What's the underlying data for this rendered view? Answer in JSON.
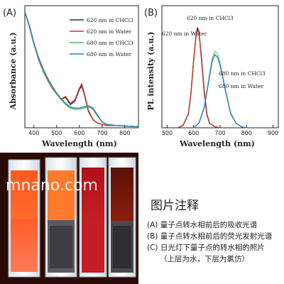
{
  "panel_labels": {
    "a": "(A)",
    "b": "(B)",
    "c": "C)"
  },
  "watermark": "mnano.com",
  "caption": {
    "title": "图片注释",
    "lines": [
      "(A) 量子点转水相前后的吸收光谱",
      "(B) 量子点转水相前后的荧光发射光谱",
      "(C) 日光灯下量子点的转水相的照片",
      "（上层为水，下层为氯仿）"
    ]
  },
  "chart_data": [
    {
      "type": "line",
      "panel": "(A)",
      "xlabel": "Wavelength (nm)",
      "ylabel": "Absorbance (a.u.)",
      "xlim": [
        360,
        860
      ],
      "xticks": [
        400,
        500,
        600,
        700,
        800
      ],
      "y_tick_labels": false,
      "legend": {
        "placement": "top-right",
        "entries": [
          {
            "name": "620 nm in CHCl3",
            "color": "#333333"
          },
          {
            "name": "620 nm in Water",
            "color": "#c0392b"
          },
          {
            "name": "680 nm in CHCl3",
            "color": "#5cb85c"
          },
          {
            "name": "680 nm in Water",
            "color": "#2e7fb8"
          }
        ]
      },
      "series": [
        {
          "name": "620 nm in CHCl3",
          "color": "#333333",
          "x": [
            360,
            380,
            400,
            420,
            440,
            460,
            480,
            500,
            520,
            540,
            560,
            580,
            600,
            610,
            620,
            640,
            660,
            680,
            700,
            720,
            760,
            800,
            860
          ],
          "y": [
            1.0,
            0.88,
            0.73,
            0.6,
            0.5,
            0.42,
            0.35,
            0.29,
            0.25,
            0.26,
            0.2,
            0.23,
            0.33,
            0.36,
            0.3,
            0.14,
            0.07,
            0.04,
            0.03,
            0.02,
            0.02,
            0.015,
            0.01
          ]
        },
        {
          "name": "620 nm in Water",
          "color": "#c0392b",
          "x": [
            360,
            380,
            400,
            420,
            440,
            460,
            480,
            500,
            520,
            540,
            560,
            580,
            600,
            610,
            620,
            640,
            660,
            680,
            700,
            720,
            760,
            800,
            860
          ],
          "y": [
            1.0,
            0.87,
            0.72,
            0.59,
            0.49,
            0.41,
            0.34,
            0.29,
            0.25,
            0.27,
            0.21,
            0.24,
            0.34,
            0.38,
            0.31,
            0.15,
            0.07,
            0.04,
            0.03,
            0.02,
            0.02,
            0.015,
            0.01
          ]
        },
        {
          "name": "680 nm in CHCl3",
          "color": "#5cb85c",
          "x": [
            360,
            380,
            400,
            420,
            440,
            460,
            480,
            500,
            520,
            540,
            560,
            580,
            600,
            620,
            640,
            660,
            680,
            700,
            720,
            760,
            800,
            860
          ],
          "y": [
            1.0,
            0.87,
            0.72,
            0.6,
            0.5,
            0.42,
            0.35,
            0.29,
            0.24,
            0.2,
            0.17,
            0.16,
            0.16,
            0.17,
            0.18,
            0.16,
            0.1,
            0.05,
            0.03,
            0.02,
            0.015,
            0.01
          ]
        },
        {
          "name": "680 nm in Water",
          "color": "#2e7fb8",
          "x": [
            360,
            380,
            400,
            420,
            440,
            460,
            480,
            500,
            520,
            540,
            560,
            580,
            600,
            620,
            640,
            660,
            680,
            700,
            720,
            760,
            800,
            860
          ],
          "y": [
            1.0,
            0.88,
            0.73,
            0.61,
            0.51,
            0.43,
            0.36,
            0.3,
            0.25,
            0.21,
            0.18,
            0.17,
            0.17,
            0.18,
            0.19,
            0.17,
            0.11,
            0.05,
            0.03,
            0.02,
            0.015,
            0.01
          ]
        }
      ]
    },
    {
      "type": "line",
      "panel": "(B)",
      "xlabel": "Wavelength (nm)",
      "ylabel": "PL intensity (a.u.)",
      "xlim": [
        480,
        920
      ],
      "xticks": [
        500,
        600,
        700,
        800,
        900
      ],
      "y_tick_labels": false,
      "annotations": [
        {
          "text": "620 nm in CHCl3",
          "near": "top"
        },
        {
          "text": "620 nm in Water",
          "near": "left peak"
        },
        {
          "text": "680 nm in CHCl3",
          "near": "right peak"
        },
        {
          "text": "680 nm in Water",
          "near": "right peak"
        }
      ],
      "series": [
        {
          "name": "620 nm in CHCl3",
          "color": "#333333",
          "x": [
            540,
            560,
            580,
            590,
            600,
            610,
            615,
            620,
            630,
            640,
            650,
            660,
            680,
            700
          ],
          "y": [
            0.0,
            0.02,
            0.12,
            0.3,
            0.58,
            0.82,
            0.86,
            0.83,
            0.6,
            0.32,
            0.12,
            0.04,
            0.01,
            0.0
          ]
        },
        {
          "name": "620 nm in Water",
          "color": "#c0392b",
          "x": [
            540,
            560,
            580,
            590,
            600,
            610,
            617,
            620,
            630,
            640,
            650,
            660,
            680,
            700
          ],
          "y": [
            0.0,
            0.02,
            0.12,
            0.3,
            0.58,
            0.82,
            0.84,
            0.82,
            0.58,
            0.3,
            0.11,
            0.04,
            0.01,
            0.0
          ]
        },
        {
          "name": "680 nm in CHCl3",
          "color": "#7ed37e",
          "x": [
            600,
            620,
            640,
            660,
            670,
            680,
            690,
            700,
            720,
            740,
            760,
            780,
            800
          ],
          "y": [
            0.0,
            0.04,
            0.18,
            0.46,
            0.6,
            0.66,
            0.64,
            0.56,
            0.33,
            0.13,
            0.04,
            0.01,
            0.0
          ]
        },
        {
          "name": "680 nm in Water",
          "color": "#2e7fb8",
          "x": [
            600,
            620,
            640,
            660,
            670,
            680,
            690,
            700,
            720,
            740,
            760,
            780,
            800
          ],
          "y": [
            0.0,
            0.04,
            0.17,
            0.44,
            0.57,
            0.63,
            0.61,
            0.54,
            0.32,
            0.12,
            0.04,
            0.01,
            0.0
          ]
        }
      ]
    }
  ]
}
